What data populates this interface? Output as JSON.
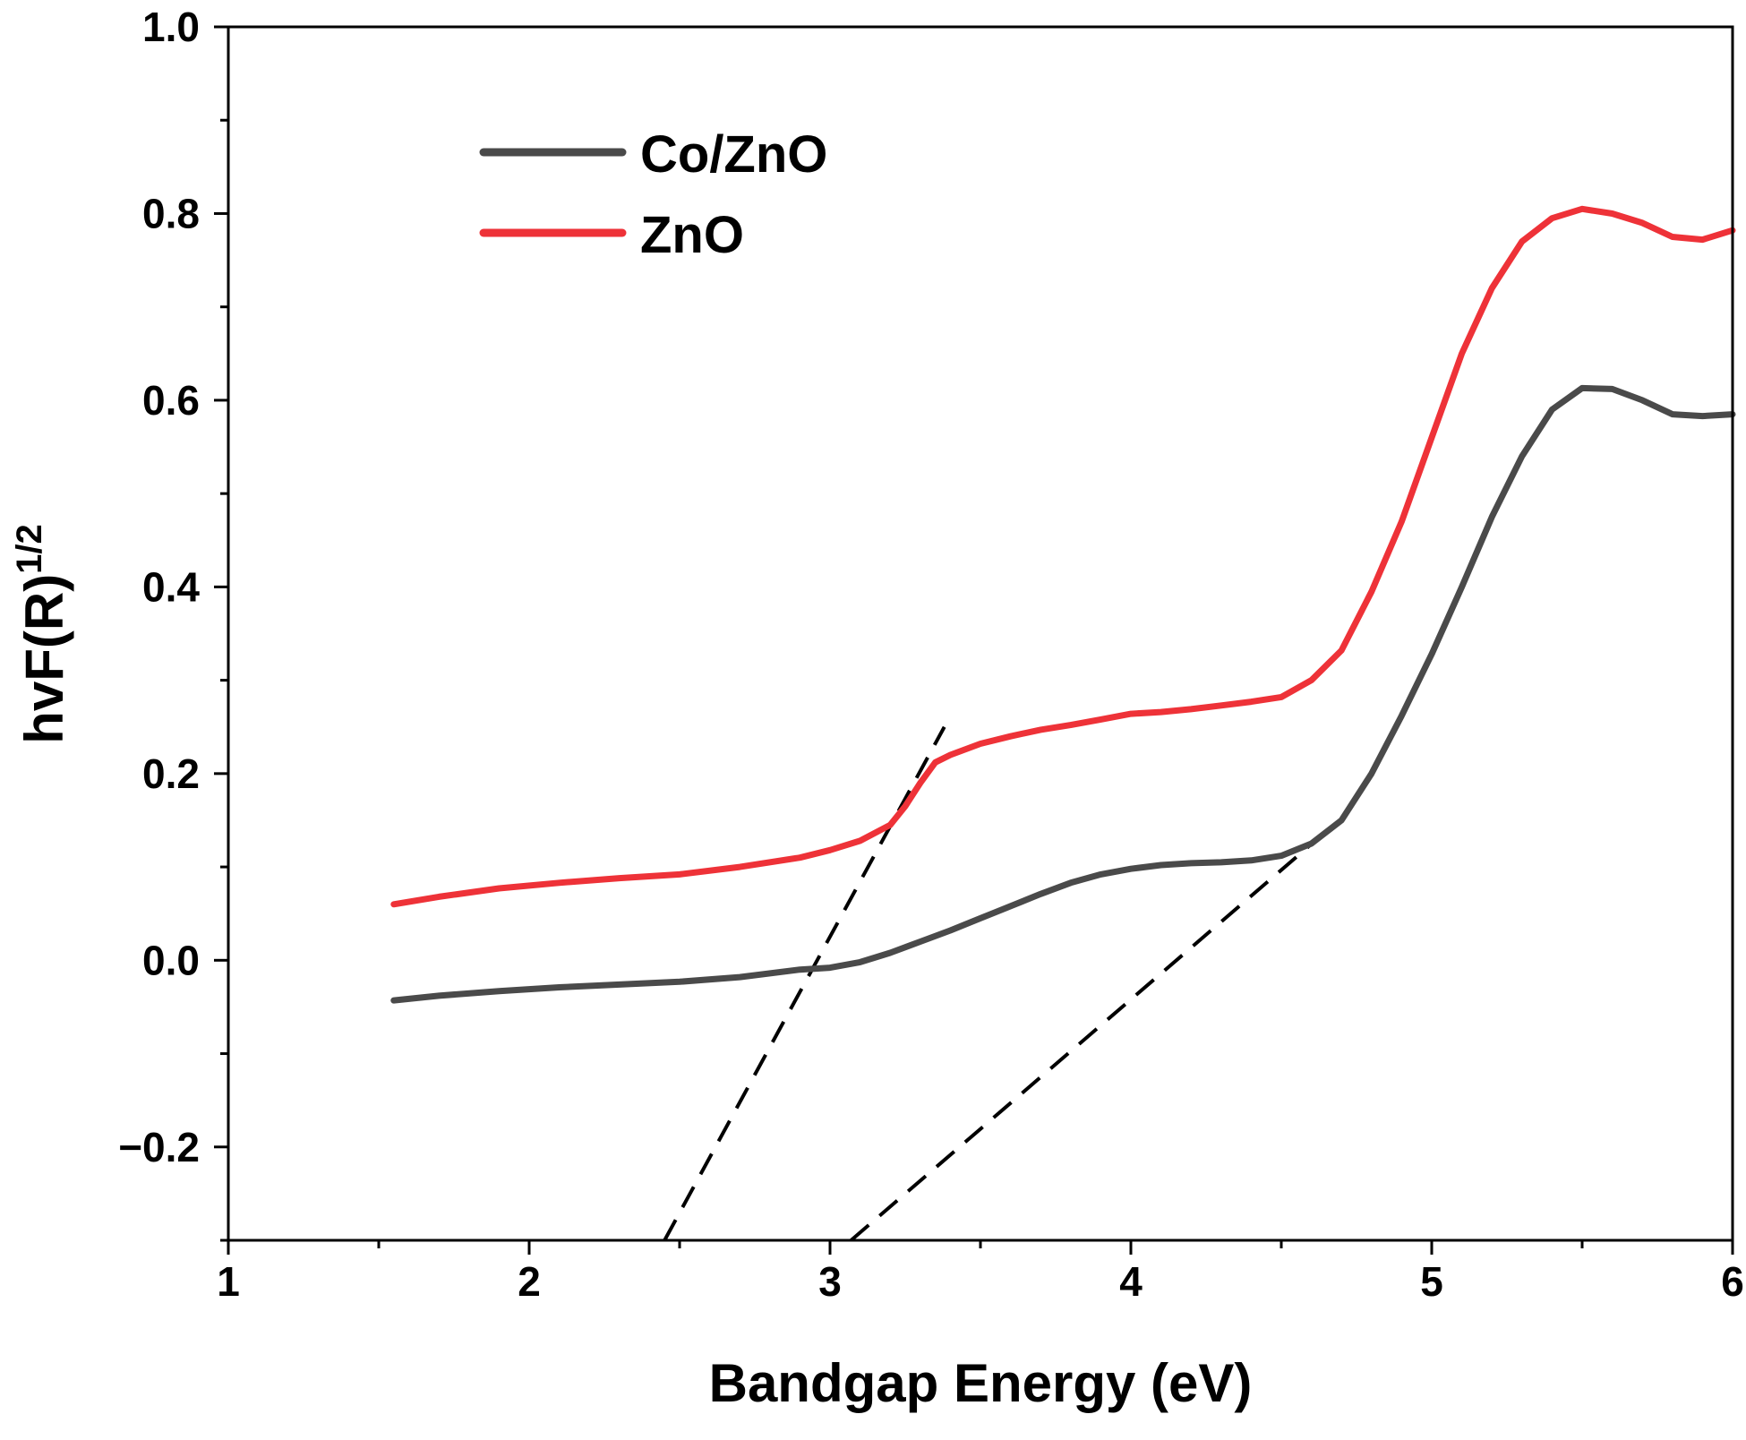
{
  "colors": {
    "co_zno": "#4a4a4a",
    "zno": "#ee3238",
    "axis": "#000000",
    "tangent": "#000000"
  },
  "chart_data": {
    "type": "line",
    "title": "",
    "xlabel": "Bandgap Energy (eV)",
    "ylabel_main": "hvF(R)",
    "ylabel_sup": "1/2",
    "xlim": [
      1,
      6
    ],
    "ylim": [
      -0.3,
      1.0
    ],
    "xticks": [
      1,
      2,
      3,
      4,
      5,
      6
    ],
    "xtick_labels": [
      "1",
      "2",
      "3",
      "4",
      "5",
      "6"
    ],
    "yticks": [
      -0.2,
      0.0,
      0.2,
      0.4,
      0.6,
      0.8,
      1.0
    ],
    "ytick_labels": [
      "−0.2",
      "0.0",
      "0.2",
      "0.4",
      "0.6",
      "0.8",
      "1.0"
    ],
    "legend_position": "top-left",
    "series": [
      {
        "name": "Co/ZnO",
        "color": "#4a4a4a",
        "x": [
          1.55,
          1.7,
          1.9,
          2.1,
          2.3,
          2.5,
          2.7,
          2.9,
          3.0,
          3.1,
          3.2,
          3.3,
          3.4,
          3.5,
          3.6,
          3.7,
          3.8,
          3.9,
          4.0,
          4.1,
          4.2,
          4.3,
          4.4,
          4.5,
          4.6,
          4.7,
          4.8,
          4.9,
          5.0,
          5.1,
          5.2,
          5.3,
          5.4,
          5.5,
          5.6,
          5.7,
          5.8,
          5.9,
          6.0
        ],
        "y": [
          -0.043,
          -0.038,
          -0.033,
          -0.029,
          -0.026,
          -0.023,
          -0.018,
          -0.01,
          -0.008,
          -0.002,
          0.008,
          0.02,
          0.032,
          0.045,
          0.058,
          0.071,
          0.083,
          0.092,
          0.098,
          0.102,
          0.104,
          0.105,
          0.107,
          0.112,
          0.125,
          0.15,
          0.2,
          0.262,
          0.328,
          0.4,
          0.475,
          0.54,
          0.59,
          0.613,
          0.612,
          0.6,
          0.585,
          0.583,
          0.585
        ]
      },
      {
        "name": "ZnO",
        "color": "#ee3238",
        "x": [
          1.55,
          1.7,
          1.9,
          2.1,
          2.3,
          2.5,
          2.7,
          2.9,
          3.0,
          3.1,
          3.2,
          3.25,
          3.3,
          3.35,
          3.4,
          3.5,
          3.6,
          3.7,
          3.8,
          3.9,
          4.0,
          4.1,
          4.2,
          4.3,
          4.4,
          4.5,
          4.6,
          4.7,
          4.8,
          4.9,
          5.0,
          5.1,
          5.2,
          5.3,
          5.4,
          5.5,
          5.6,
          5.7,
          5.8,
          5.9,
          6.0
        ],
        "y": [
          0.06,
          0.068,
          0.077,
          0.083,
          0.088,
          0.092,
          0.1,
          0.11,
          0.118,
          0.128,
          0.145,
          0.165,
          0.19,
          0.212,
          0.22,
          0.232,
          0.24,
          0.247,
          0.252,
          0.258,
          0.264,
          0.266,
          0.269,
          0.273,
          0.277,
          0.282,
          0.3,
          0.332,
          0.395,
          0.47,
          0.56,
          0.65,
          0.72,
          0.77,
          0.795,
          0.805,
          0.8,
          0.79,
          0.775,
          0.772,
          0.782
        ]
      }
    ],
    "tangent_lines": [
      {
        "x": [
          2.45,
          3.38
        ],
        "y": [
          -0.3,
          0.25
        ]
      },
      {
        "x": [
          3.07,
          4.62
        ],
        "y": [
          -0.3,
          0.13
        ]
      }
    ]
  }
}
